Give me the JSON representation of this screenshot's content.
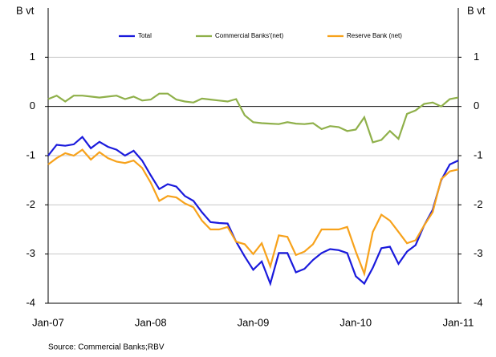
{
  "chart_data": {
    "type": "line",
    "ylabel": "B vt",
    "y2label": "B vt",
    "source": "Source: Commercial Banks;RBV",
    "categories": [
      "Jan-07",
      null,
      null,
      null,
      null,
      null,
      null,
      null,
      null,
      null,
      null,
      null,
      "Jan-08",
      null,
      null,
      null,
      null,
      null,
      null,
      null,
      null,
      null,
      null,
      null,
      "Jan-09",
      null,
      null,
      null,
      null,
      null,
      null,
      null,
      null,
      null,
      null,
      null,
      "Jan-10",
      null,
      null,
      null,
      null,
      null,
      null,
      null,
      null,
      null,
      null,
      null,
      "Jan-11"
    ],
    "series": [
      {
        "name": "Total",
        "color": "#1a1adc",
        "values": [
          -1.0,
          -0.78,
          -0.8,
          -0.77,
          -0.62,
          -0.85,
          -0.72,
          -0.82,
          -0.88,
          -1.0,
          -0.9,
          -1.1,
          -1.4,
          -1.68,
          -1.58,
          -1.63,
          -1.82,
          -1.92,
          -2.15,
          -2.35,
          -2.37,
          -2.38,
          -2.75,
          -3.05,
          -3.32,
          -3.15,
          -3.6,
          -2.98,
          -2.98,
          -3.37,
          -3.3,
          -3.12,
          -2.98,
          -2.9,
          -2.92,
          -2.98,
          -3.45,
          -3.6,
          -3.28,
          -2.88,
          -2.85,
          -3.2,
          -2.95,
          -2.82,
          -2.42,
          -2.1,
          -1.5,
          -1.18,
          -1.1
        ]
      },
      {
        "name": "Commercial Banks'(net)",
        "color": "#8fb04a",
        "values": [
          0.15,
          0.22,
          0.1,
          0.22,
          0.22,
          0.2,
          0.18,
          0.2,
          0.22,
          0.15,
          0.2,
          0.12,
          0.14,
          0.26,
          0.26,
          0.14,
          0.1,
          0.08,
          0.16,
          0.14,
          0.12,
          0.1,
          0.15,
          -0.18,
          -0.32,
          -0.34,
          -0.35,
          -0.36,
          -0.32,
          -0.35,
          -0.36,
          -0.34,
          -0.46,
          -0.4,
          -0.42,
          -0.5,
          -0.47,
          -0.22,
          -0.73,
          -0.68,
          -0.5,
          -0.66,
          -0.15,
          -0.08,
          0.05,
          0.08,
          0.0,
          0.15,
          0.18
        ]
      },
      {
        "name": "Reserve Bank (net)",
        "color": "#f7a21b",
        "values": [
          -1.18,
          -1.05,
          -0.95,
          -1.0,
          -0.88,
          -1.08,
          -0.93,
          -1.05,
          -1.12,
          -1.15,
          -1.1,
          -1.25,
          -1.55,
          -1.92,
          -1.82,
          -1.85,
          -1.97,
          -2.05,
          -2.32,
          -2.5,
          -2.5,
          -2.45,
          -2.75,
          -2.8,
          -3.0,
          -2.78,
          -3.25,
          -2.62,
          -2.65,
          -3.02,
          -2.95,
          -2.8,
          -2.5,
          -2.5,
          -2.5,
          -2.45,
          -2.95,
          -3.4,
          -2.55,
          -2.2,
          -2.32,
          -2.55,
          -2.78,
          -2.72,
          -2.42,
          -2.15,
          -1.48,
          -1.32,
          -1.28
        ]
      }
    ],
    "ylim": [
      -4,
      2
    ],
    "yticks": [
      -4,
      -3,
      -2,
      -1,
      0,
      1
    ],
    "y2lim": [
      -4,
      2
    ],
    "y2ticks": [
      -4,
      -3,
      -2,
      -1,
      0,
      1
    ],
    "grid": true
  }
}
